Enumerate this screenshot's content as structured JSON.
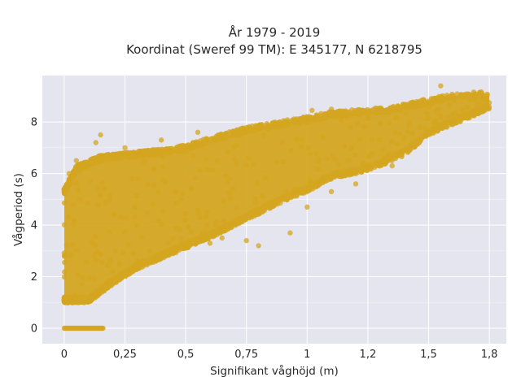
{
  "chart_data": {
    "type": "scatter",
    "title_line1": "År 1979 - 2019",
    "title_line2": "Koordinat (Sweref 99 TM): E 345177, N 6218795",
    "xlabel": "Signifikant våghöjd (m)",
    "ylabel": "Vågperiod (s)",
    "xlim": [
      -0.09,
      1.82
    ],
    "ylim": [
      -0.6,
      9.8
    ],
    "x_ticks": [
      0,
      0.25,
      0.5,
      0.75,
      1,
      1.25,
      1.5,
      1.75
    ],
    "x_tick_labels": [
      "0",
      "0,25",
      "0,5",
      "0,75",
      "1",
      "1,2",
      "1,5",
      "1,8"
    ],
    "y_ticks": [
      0,
      2,
      4,
      6,
      8
    ],
    "y_tick_labels": [
      "0",
      "2",
      "4",
      "6",
      "8"
    ],
    "grid": true,
    "plot_bg": "#e5e5f0",
    "marker_color": "#d4a520",
    "band_lower": [
      [
        0.0,
        1.1
      ],
      [
        0.1,
        1.1
      ],
      [
        0.2,
        1.8
      ],
      [
        0.3,
        2.4
      ],
      [
        0.4,
        2.8
      ],
      [
        0.5,
        3.2
      ],
      [
        0.6,
        3.6
      ],
      [
        0.75,
        4.3
      ],
      [
        0.9,
        5.0
      ],
      [
        1.0,
        5.4
      ],
      [
        1.1,
        5.9
      ],
      [
        1.25,
        6.2
      ],
      [
        1.4,
        6.8
      ],
      [
        1.5,
        7.6
      ],
      [
        1.6,
        8.0
      ],
      [
        1.75,
        8.6
      ]
    ],
    "band_upper": [
      [
        0.0,
        5.3
      ],
      [
        0.05,
        6.2
      ],
      [
        0.15,
        6.6
      ],
      [
        0.25,
        6.7
      ],
      [
        0.4,
        6.85
      ],
      [
        0.5,
        7.0
      ],
      [
        0.6,
        7.3
      ],
      [
        0.75,
        7.7
      ],
      [
        0.9,
        7.95
      ],
      [
        1.0,
        8.1
      ],
      [
        1.1,
        8.3
      ],
      [
        1.25,
        8.4
      ],
      [
        1.35,
        8.5
      ],
      [
        1.5,
        8.8
      ],
      [
        1.6,
        9.0
      ],
      [
        1.75,
        9.1
      ]
    ],
    "zero_period_segment": {
      "x_start": 0.0,
      "x_end": 0.16,
      "y": 0
    },
    "outliers": [
      [
        0.15,
        7.5
      ],
      [
        0.13,
        7.2
      ],
      [
        0.05,
        6.5
      ],
      [
        0.02,
        6.0
      ],
      [
        0.25,
        7.0
      ],
      [
        0.4,
        7.3
      ],
      [
        0.55,
        7.6
      ],
      [
        0.6,
        3.3
      ],
      [
        0.65,
        3.5
      ],
      [
        0.75,
        3.4
      ],
      [
        0.8,
        3.2
      ],
      [
        0.93,
        3.7
      ],
      [
        0.88,
        4.9
      ],
      [
        0.95,
        5.4
      ],
      [
        1.0,
        4.7
      ],
      [
        1.1,
        5.3
      ],
      [
        1.2,
        5.6
      ],
      [
        1.35,
        6.3
      ],
      [
        1.02,
        8.45
      ],
      [
        1.1,
        8.5
      ],
      [
        1.3,
        8.5
      ],
      [
        1.55,
        9.4
      ],
      [
        1.72,
        9.1
      ],
      [
        1.74,
        8.9
      ],
      [
        1.45,
        8.6
      ],
      [
        1.55,
        8.2
      ],
      [
        1.6,
        8.3
      ],
      [
        0.35,
        3.0
      ],
      [
        0.45,
        3.1
      ],
      [
        0.3,
        2.6
      ],
      [
        0.2,
        2.2
      ],
      [
        0.5,
        3.3
      ]
    ],
    "n_points": 2600,
    "random_seed": 1979
  }
}
